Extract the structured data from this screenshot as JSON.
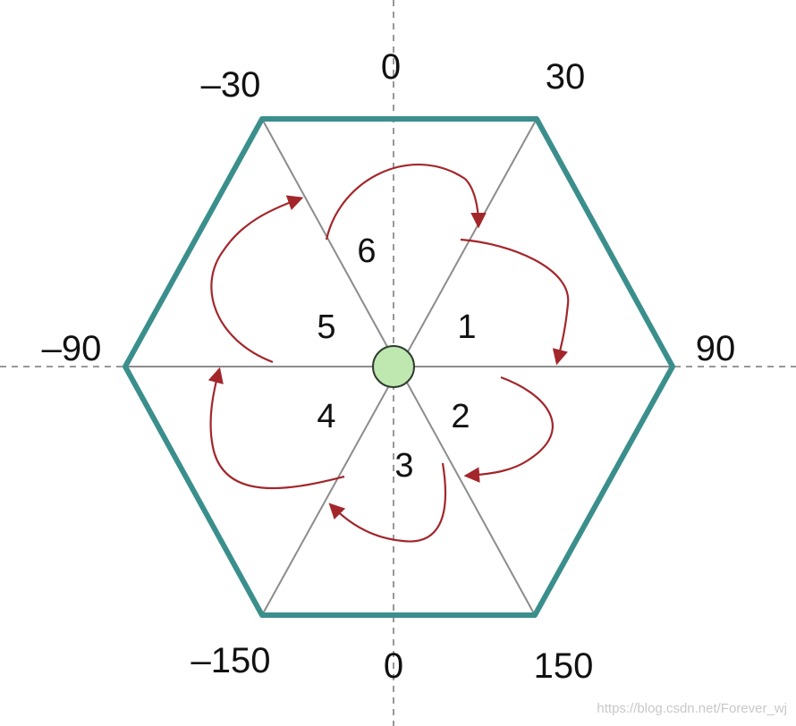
{
  "angle_labels": {
    "top_zero": "0",
    "top_right": "30",
    "top_left": "–30",
    "left": "–90",
    "right": "90",
    "bottom_left": "–150",
    "bottom_zero": "0",
    "bottom_right": "150"
  },
  "sectors": [
    "1",
    "2",
    "3",
    "4",
    "5",
    "6"
  ],
  "watermark": "https://blog.csdn.net/Forever_wj",
  "colors": {
    "hexagon": "#3a8f8c",
    "spokes": "#8c8c8c",
    "axes": "#777777",
    "arrows": "#a3262a",
    "center_fill": "#bfe8b0"
  }
}
